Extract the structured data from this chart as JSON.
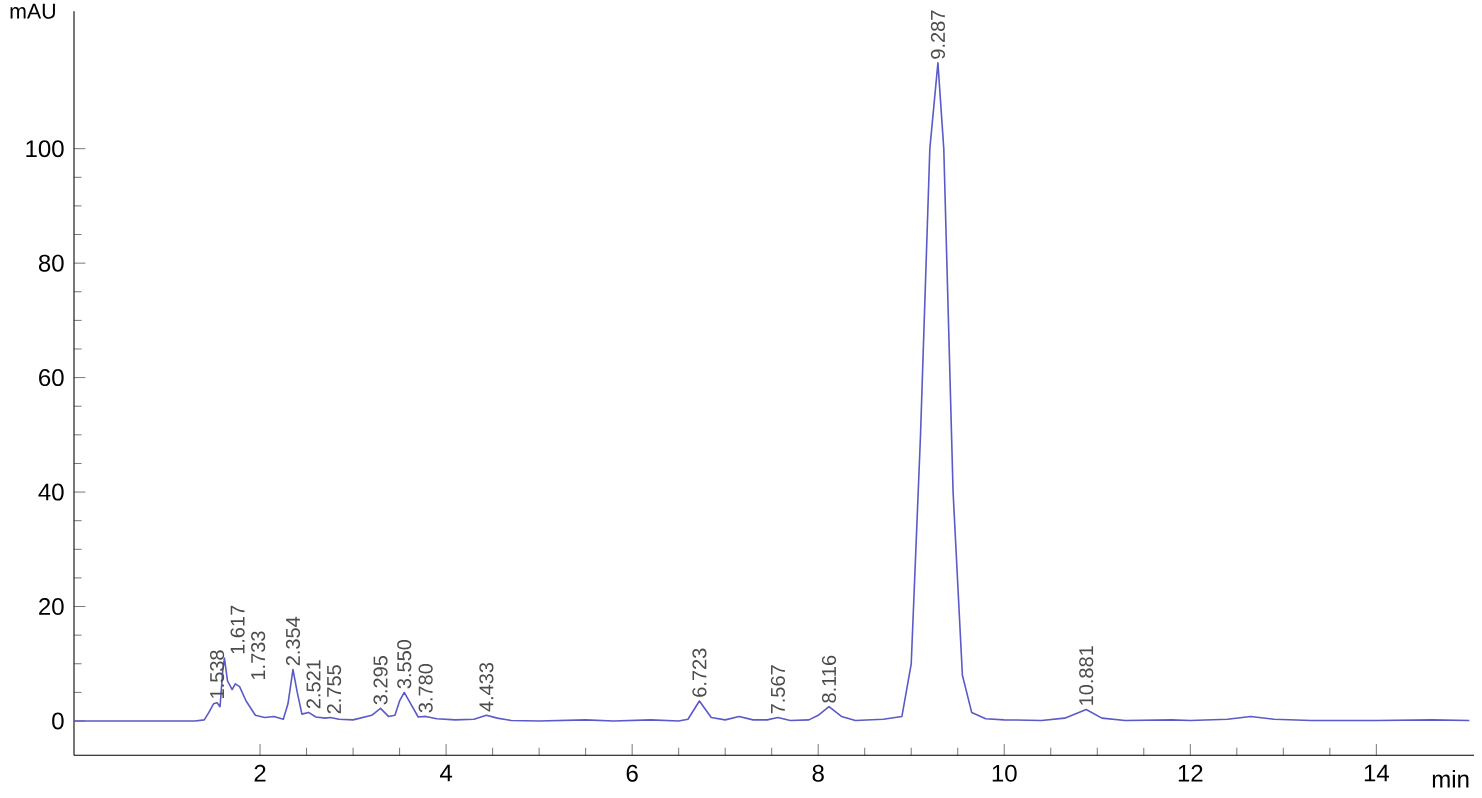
{
  "chart_data": {
    "type": "line",
    "xlabel": "min",
    "ylabel": "mAU",
    "xlim": [
      0,
      15.05
    ],
    "ylim": [
      -6,
      124
    ],
    "xticks": [
      2,
      4,
      6,
      8,
      10,
      12,
      14
    ],
    "yticks": [
      0,
      20,
      40,
      60,
      80,
      100
    ],
    "grid": false,
    "marker": "none",
    "line_style": "solid",
    "series": [
      {
        "color": "#5a5ac8",
        "x": [
          0,
          1.3,
          1.4,
          1.45,
          1.5,
          1.538,
          1.57,
          1.6,
          1.617,
          1.65,
          1.7,
          1.733,
          1.78,
          1.85,
          1.95,
          2.05,
          2.15,
          2.25,
          2.3,
          2.354,
          2.4,
          2.45,
          2.521,
          2.6,
          2.7,
          2.755,
          2.85,
          3.0,
          3.1,
          3.2,
          3.295,
          3.38,
          3.45,
          3.5,
          3.55,
          3.62,
          3.7,
          3.78,
          3.9,
          4.1,
          4.3,
          4.433,
          4.55,
          4.7,
          5.0,
          5.5,
          5.8,
          6.2,
          6.5,
          6.6,
          6.723,
          6.85,
          7.0,
          7.15,
          7.3,
          7.45,
          7.567,
          7.7,
          7.9,
          8.0,
          8.116,
          8.25,
          8.4,
          8.7,
          8.9,
          9.0,
          9.1,
          9.2,
          9.287,
          9.35,
          9.45,
          9.55,
          9.65,
          9.8,
          10.0,
          10.4,
          10.65,
          10.881,
          11.05,
          11.3,
          11.8,
          12.0,
          12.4,
          12.65,
          12.9,
          13.3,
          14.0,
          14.6,
          15.0
        ],
        "values": [
          0,
          0,
          0.2,
          1.5,
          3,
          3.2,
          2.5,
          9,
          11,
          7,
          5.5,
          6.5,
          6,
          3.5,
          1,
          0.6,
          0.8,
          0.3,
          3,
          9,
          5,
          1.2,
          1.5,
          0.7,
          0.5,
          0.6,
          0.3,
          0.2,
          0.6,
          1,
          2.2,
          0.8,
          1,
          3.5,
          5,
          3,
          0.7,
          0.8,
          0.4,
          0.2,
          0.3,
          1,
          0.5,
          0.1,
          0,
          0.2,
          0,
          0.2,
          0,
          0.3,
          3.5,
          0.6,
          0.2,
          0.8,
          0.2,
          0.2,
          0.6,
          0.1,
          0.2,
          1,
          2.5,
          0.8,
          0.1,
          0.3,
          0.8,
          10,
          50,
          100,
          115,
          100,
          40,
          8,
          1.5,
          0.4,
          0.2,
          0.1,
          0.5,
          2,
          0.5,
          0.1,
          0.2,
          0.1,
          0.3,
          0.8,
          0.3,
          0.1,
          0.1,
          0.2,
          0.1
        ]
      }
    ],
    "annotations": [
      {
        "text": "1.538",
        "x": 1.538,
        "y": 3.2
      },
      {
        "text": "1.617",
        "x": 1.617,
        "y": 11
      },
      {
        "text": "1.733",
        "x": 1.733,
        "y": 6.5
      },
      {
        "text": "2.354",
        "x": 2.354,
        "y": 9
      },
      {
        "text": "2.521",
        "x": 2.521,
        "y": 1.5
      },
      {
        "text": "2.755",
        "x": 2.755,
        "y": 0.6
      },
      {
        "text": "3.295",
        "x": 3.295,
        "y": 2.2
      },
      {
        "text": "3.550",
        "x": 3.55,
        "y": 5
      },
      {
        "text": "3.780",
        "x": 3.78,
        "y": 0.8
      },
      {
        "text": "4.433",
        "x": 4.433,
        "y": 1
      },
      {
        "text": "6.723",
        "x": 6.723,
        "y": 3.5
      },
      {
        "text": "7.567",
        "x": 7.567,
        "y": 0.6
      },
      {
        "text": "8.116",
        "x": 8.116,
        "y": 2.5
      },
      {
        "text": "9.287",
        "x": 9.287,
        "y": 115
      },
      {
        "text": "10.881",
        "x": 10.881,
        "y": 2
      }
    ]
  }
}
